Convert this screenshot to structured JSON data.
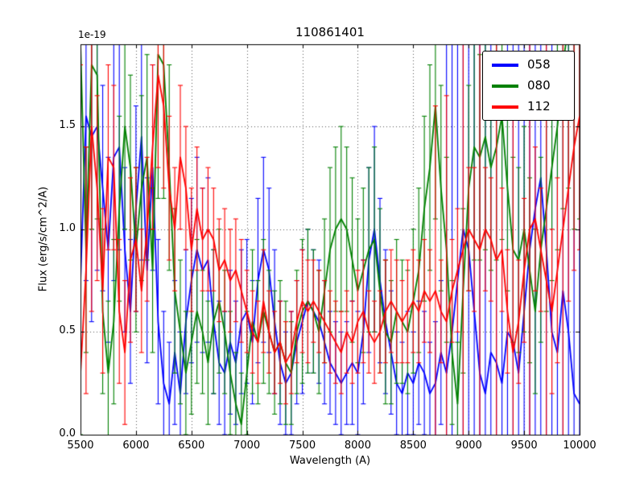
{
  "chart_data": {
    "type": "line",
    "title": "110861401",
    "xlabel": "Wavelength (A)",
    "ylabel": "Flux (erg/s/cm^2/A)",
    "offset_label": "1e-19",
    "xlim": [
      5500,
      10000
    ],
    "ylim": [
      0,
      1.9
    ],
    "xticks": [
      5500,
      6000,
      6500,
      7000,
      7500,
      8000,
      8500,
      9000,
      9500,
      10000
    ],
    "xtick_labels": [
      "5500",
      "6000",
      "6500",
      "7000",
      "7500",
      "8000",
      "8500",
      "9000",
      "9500",
      "10000"
    ],
    "yticks": [
      0.0,
      0.5,
      1.0,
      1.5
    ],
    "ytick_labels": [
      "0.0",
      "0.5",
      "1.0",
      "1.5"
    ],
    "grid": true,
    "grid_style": "dotted",
    "legend_position": "upper right",
    "x": {
      "start": 5500,
      "step": 50,
      "count": 91
    },
    "series": [
      {
        "name": "058",
        "color": "#0000ff",
        "y": [
          0.75,
          1.55,
          1.45,
          1.5,
          1.2,
          0.9,
          1.35,
          1.4,
          0.9,
          0.6,
          1.1,
          1.45,
          0.8,
          1.3,
          0.55,
          0.25,
          0.15,
          0.4,
          0.2,
          0.55,
          0.75,
          0.9,
          0.8,
          0.85,
          0.55,
          0.35,
          0.3,
          0.45,
          0.35,
          0.55,
          0.6,
          0.45,
          0.75,
          0.9,
          0.8,
          0.55,
          0.35,
          0.25,
          0.3,
          0.45,
          0.55,
          0.65,
          0.6,
          0.55,
          0.45,
          0.35,
          0.3,
          0.25,
          0.3,
          0.35,
          0.3,
          0.5,
          0.85,
          1.0,
          0.75,
          0.55,
          0.4,
          0.25,
          0.2,
          0.3,
          0.25,
          0.35,
          0.3,
          0.2,
          0.25,
          0.4,
          0.3,
          0.5,
          0.75,
          1.0,
          0.9,
          0.6,
          0.3,
          0.2,
          0.4,
          0.35,
          0.25,
          0.5,
          0.45,
          0.3,
          0.6,
          0.9,
          1.1,
          1.25,
          0.9,
          0.5,
          0.4,
          0.7,
          0.5,
          0.2,
          0.15
        ],
        "yerr": [
          1.2,
          0.8,
          0.9,
          0.7,
          0.5,
          0.45,
          0.6,
          0.5,
          0.4,
          0.35,
          0.5,
          0.6,
          0.45,
          0.5,
          0.4,
          0.35,
          0.3,
          0.35,
          0.3,
          0.35,
          0.4,
          0.45,
          0.4,
          0.4,
          0.35,
          0.3,
          0.3,
          0.35,
          0.3,
          0.35,
          0.35,
          0.3,
          0.4,
          0.45,
          0.4,
          0.35,
          0.3,
          0.25,
          0.3,
          0.3,
          0.35,
          0.35,
          0.3,
          0.3,
          0.3,
          0.25,
          0.25,
          0.25,
          0.25,
          0.3,
          0.3,
          0.35,
          0.45,
          0.5,
          0.4,
          0.35,
          0.3,
          0.25,
          0.25,
          0.3,
          0.25,
          0.3,
          0.3,
          0.25,
          0.3,
          0.35,
          1.8,
          1.6,
          2.0,
          1.7,
          1.9,
          1.5,
          1.8,
          2.2,
          1.6,
          1.9,
          1.4,
          1.7,
          2.0,
          1.8,
          1.5,
          1.9,
          1.6,
          2.1,
          1.8,
          2.0,
          1.7,
          1.6,
          1.9,
          1.8,
          2.0
        ]
      },
      {
        "name": "080",
        "color": "#008000",
        "y": [
          1.9,
          0.9,
          1.8,
          1.75,
          0.6,
          0.3,
          0.55,
          1.1,
          1.5,
          1.3,
          0.9,
          1.2,
          1.35,
          0.8,
          1.85,
          1.8,
          1.3,
          0.7,
          0.5,
          0.3,
          0.45,
          0.6,
          0.5,
          0.35,
          0.55,
          0.65,
          0.5,
          0.3,
          0.15,
          0.05,
          0.3,
          0.55,
          0.45,
          0.6,
          0.5,
          0.4,
          0.45,
          0.35,
          0.3,
          0.5,
          0.6,
          0.65,
          0.6,
          0.5,
          0.7,
          0.9,
          1.0,
          1.05,
          1.0,
          0.85,
          0.7,
          0.8,
          0.9,
          0.95,
          0.7,
          0.5,
          0.45,
          0.6,
          0.55,
          0.5,
          0.65,
          0.8,
          1.1,
          1.3,
          1.6,
          1.2,
          0.9,
          0.4,
          0.15,
          0.7,
          1.2,
          1.4,
          1.35,
          1.45,
          1.3,
          1.4,
          1.55,
          1.2,
          0.9,
          0.85,
          1.0,
          0.8,
          0.6,
          0.9,
          1.1,
          1.3,
          1.5,
          1.8,
          2.0,
          1.9,
          1.95
        ],
        "yerr": [
          1.9,
          0.5,
          0.8,
          0.7,
          0.4,
          0.35,
          0.4,
          0.45,
          0.5,
          0.45,
          0.4,
          0.45,
          0.5,
          0.4,
          0.7,
          0.65,
          0.5,
          0.4,
          0.35,
          0.3,
          0.35,
          0.35,
          0.3,
          0.3,
          0.35,
          0.35,
          0.3,
          0.3,
          0.25,
          0.25,
          0.3,
          0.35,
          0.3,
          0.35,
          0.3,
          0.3,
          0.3,
          0.3,
          0.25,
          0.3,
          0.35,
          0.35,
          0.3,
          0.3,
          0.35,
          0.4,
          0.4,
          0.45,
          0.4,
          0.4,
          0.35,
          0.4,
          0.4,
          0.45,
          0.4,
          0.35,
          0.3,
          0.35,
          0.3,
          0.3,
          0.35,
          0.4,
          0.45,
          0.5,
          0.55,
          0.5,
          0.45,
          0.35,
          0.3,
          0.4,
          0.5,
          0.55,
          0.5,
          0.55,
          0.5,
          0.55,
          0.6,
          0.5,
          0.45,
          0.45,
          0.5,
          0.45,
          0.4,
          0.45,
          0.5,
          0.55,
          0.6,
          0.7,
          0.8,
          0.9,
          0.9
        ]
      },
      {
        "name": "112",
        "color": "#ff0000",
        "y": [
          0.3,
          0.8,
          1.5,
          1.2,
          0.7,
          1.35,
          1.3,
          0.6,
          0.4,
          0.85,
          0.95,
          0.7,
          1.0,
          1.4,
          1.75,
          1.6,
          1.2,
          1.0,
          1.35,
          1.2,
          0.9,
          1.1,
          0.95,
          1.0,
          0.95,
          0.8,
          0.85,
          0.75,
          0.8,
          0.7,
          0.6,
          0.5,
          0.45,
          0.65,
          0.5,
          0.4,
          0.45,
          0.35,
          0.4,
          0.55,
          0.65,
          0.6,
          0.65,
          0.6,
          0.55,
          0.5,
          0.45,
          0.4,
          0.5,
          0.45,
          0.55,
          0.6,
          0.5,
          0.45,
          0.5,
          0.6,
          0.65,
          0.6,
          0.55,
          0.6,
          0.65,
          0.6,
          0.7,
          0.65,
          0.7,
          0.6,
          0.55,
          0.7,
          0.8,
          0.9,
          1.0,
          0.95,
          0.9,
          1.0,
          0.95,
          0.85,
          0.9,
          0.6,
          0.4,
          0.55,
          0.8,
          1.0,
          1.05,
          0.9,
          0.75,
          0.6,
          0.8,
          1.0,
          1.2,
          1.4,
          1.55
        ],
        "yerr": [
          1.5,
          0.6,
          0.9,
          0.45,
          0.4,
          0.45,
          0.4,
          0.35,
          0.35,
          0.4,
          0.35,
          0.3,
          0.35,
          0.4,
          0.45,
          0.4,
          0.35,
          0.3,
          0.35,
          0.3,
          0.3,
          0.3,
          0.25,
          0.3,
          0.25,
          0.25,
          0.25,
          0.25,
          0.25,
          0.25,
          0.2,
          0.2,
          0.2,
          0.25,
          0.2,
          0.2,
          0.2,
          0.2,
          0.2,
          0.2,
          0.25,
          0.25,
          0.2,
          0.2,
          0.2,
          0.2,
          0.2,
          0.2,
          0.2,
          0.2,
          0.25,
          0.25,
          0.2,
          0.2,
          0.2,
          0.25,
          0.25,
          0.25,
          0.2,
          0.25,
          0.25,
          0.25,
          0.25,
          0.25,
          0.9,
          0.25,
          1.1,
          0.25,
          0.3,
          1.2,
          0.3,
          0.35,
          1.3,
          0.3,
          0.3,
          1.1,
          0.3,
          0.3,
          1.2,
          0.3,
          0.35,
          1.3,
          0.35,
          0.3,
          1.2,
          0.4,
          0.45,
          1.3,
          0.55,
          0.6,
          0.65
        ]
      }
    ]
  }
}
